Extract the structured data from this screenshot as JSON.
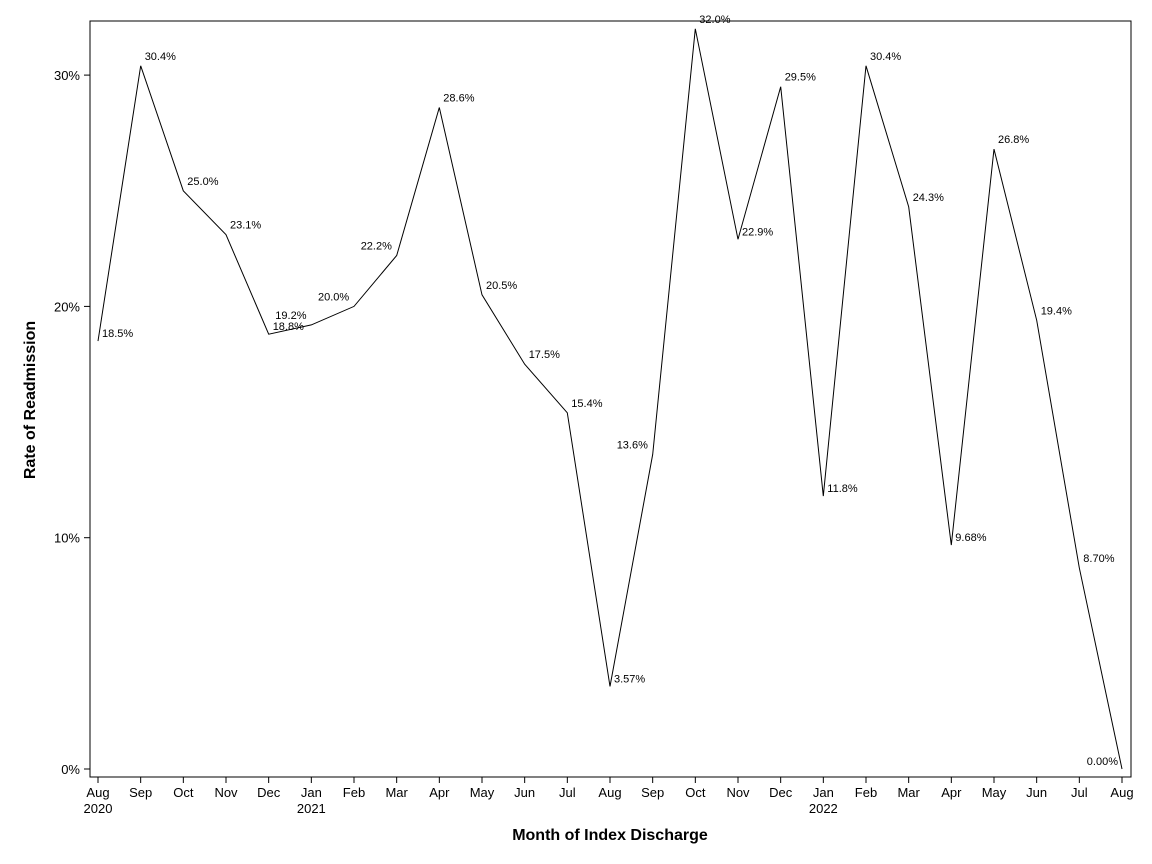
{
  "chart_data": {
    "type": "line",
    "xlabel": "Month of Index Discharge",
    "ylabel": "Rate of Readmission",
    "ylim": [
      0,
      32.0
    ],
    "y_ticks": [
      {
        "value": 0,
        "label": "0%"
      },
      {
        "value": 10,
        "label": "10%"
      },
      {
        "value": 20,
        "label": "20%"
      },
      {
        "value": 30,
        "label": "30%"
      }
    ],
    "grid": false,
    "legend": "none",
    "x": [
      "Aug 2020",
      "Sep 2020",
      "Oct 2020",
      "Nov 2020",
      "Dec 2020",
      "Jan 2021",
      "Feb 2021",
      "Mar 2021",
      "Apr 2021",
      "May 2021",
      "Jun 2021",
      "Jul 2021",
      "Aug 2021",
      "Sep 2021",
      "Oct 2021",
      "Nov 2021",
      "Dec 2021",
      "Jan 2022",
      "Feb 2022",
      "Mar 2022",
      "Apr 2022",
      "May 2022",
      "Jun 2022",
      "Jul 2022",
      "Aug 2022"
    ],
    "x_tick_labels": [
      {
        "month": "Aug",
        "year": "2020"
      },
      {
        "month": "Sep",
        "year": ""
      },
      {
        "month": "Oct",
        "year": ""
      },
      {
        "month": "Nov",
        "year": ""
      },
      {
        "month": "Dec",
        "year": ""
      },
      {
        "month": "Jan",
        "year": "2021"
      },
      {
        "month": "Feb",
        "year": ""
      },
      {
        "month": "Mar",
        "year": ""
      },
      {
        "month": "Apr",
        "year": ""
      },
      {
        "month": "May",
        "year": ""
      },
      {
        "month": "Jun",
        "year": ""
      },
      {
        "month": "Jul",
        "year": ""
      },
      {
        "month": "Aug",
        "year": ""
      },
      {
        "month": "Sep",
        "year": ""
      },
      {
        "month": "Oct",
        "year": ""
      },
      {
        "month": "Nov",
        "year": ""
      },
      {
        "month": "Dec",
        "year": ""
      },
      {
        "month": "Jan",
        "year": "2022"
      },
      {
        "month": "Feb",
        "year": ""
      },
      {
        "month": "Mar",
        "year": ""
      },
      {
        "month": "Apr",
        "year": ""
      },
      {
        "month": "May",
        "year": ""
      },
      {
        "month": "Jun",
        "year": ""
      },
      {
        "month": "Jul",
        "year": ""
      },
      {
        "month": "Aug",
        "year": ""
      }
    ],
    "series": [
      {
        "values": [
          18.5,
          30.4,
          25.0,
          23.1,
          18.8,
          19.2,
          20.0,
          22.2,
          28.6,
          20.5,
          17.5,
          15.4,
          3.57,
          13.6,
          32.0,
          22.9,
          29.5,
          11.8,
          30.4,
          24.3,
          9.68,
          26.8,
          19.4,
          8.7,
          0.0
        ],
        "labels": [
          "18.5%",
          "30.4%",
          "25.0%",
          "23.1%",
          "18.8%",
          "19.2%",
          "20.0%",
          "22.2%",
          "28.6%",
          "20.5%",
          "17.5%",
          "15.4%",
          "3.57%",
          "13.6%",
          "32.0%",
          "22.9%",
          "29.5%",
          "11.8%",
          "30.4%",
          "24.3%",
          "9.68%",
          "26.8%",
          "19.4%",
          "8.70%",
          "0.00%"
        ]
      }
    ]
  }
}
